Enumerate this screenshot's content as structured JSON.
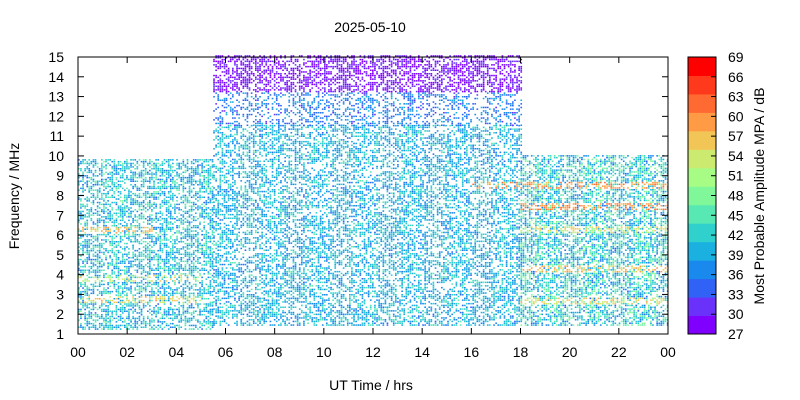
{
  "chart_data": {
    "type": "heatmap",
    "title": "2025-05-10",
    "xlabel": "UT Time / hrs",
    "ylabel": "Frequency / MHz",
    "colorbar_label": "Most Probable Amplitude MPA / dB",
    "xlim": [
      0,
      24
    ],
    "ylim": [
      1,
      15
    ],
    "x_tick_labels": [
      "00",
      "02",
      "04",
      "06",
      "08",
      "10",
      "12",
      "14",
      "16",
      "18",
      "20",
      "22",
      "00"
    ],
    "y_ticks": [
      1,
      2,
      3,
      4,
      5,
      6,
      7,
      8,
      9,
      10,
      11,
      12,
      13,
      14,
      15
    ],
    "colorbar_ticks": [
      27,
      30,
      33,
      36,
      39,
      42,
      45,
      48,
      51,
      54,
      57,
      60,
      63,
      66,
      69
    ],
    "colorbar_range": [
      27,
      69
    ],
    "colormap": [
      "#8000ff",
      "#6a31fb",
      "#3063f5",
      "#1a89ee",
      "#1ab0e0",
      "#30d0cc",
      "#58e8b4",
      "#80f89a",
      "#a6fc84",
      "#ccea70",
      "#f2c656",
      "#ff9a45",
      "#ff6a32",
      "#ff3a1c",
      "#ff0000"
    ],
    "grid": false,
    "regions": [
      {
        "t_start": 0,
        "t_end": 5.5,
        "f_low": 1.2,
        "f_high": 9.8,
        "amp_base": 41,
        "amp_spread": 6,
        "density": 0.55
      },
      {
        "t_start": 5.5,
        "t_end": 18,
        "f_low": 1.4,
        "f_high": 11.5,
        "amp_base": 40,
        "amp_spread": 5,
        "density": 0.5
      },
      {
        "t_start": 5.5,
        "t_end": 18,
        "f_low": 11.5,
        "f_high": 13.2,
        "amp_base": 36,
        "amp_spread": 4,
        "density": 0.35
      },
      {
        "t_start": 5.5,
        "t_end": 18,
        "f_low": 13.2,
        "f_high": 15.0,
        "amp_base": 29,
        "amp_spread": 3,
        "density": 0.55
      },
      {
        "t_start": 18,
        "t_end": 24,
        "f_low": 1.4,
        "f_high": 10.0,
        "amp_base": 42,
        "amp_spread": 7,
        "density": 0.6
      }
    ],
    "hot_bands": [
      {
        "t_start": 0,
        "t_end": 5,
        "f": 2.7,
        "amp": 58
      },
      {
        "t_start": 0,
        "t_end": 5,
        "f": 3.8,
        "amp": 56
      },
      {
        "t_start": 0,
        "t_end": 3,
        "f": 6.2,
        "amp": 60
      },
      {
        "t_start": 16,
        "t_end": 24,
        "f": 8.5,
        "amp": 62
      },
      {
        "t_start": 18,
        "t_end": 24,
        "f": 7.4,
        "amp": 63
      },
      {
        "t_start": 18,
        "t_end": 24,
        "f": 4.2,
        "amp": 60
      },
      {
        "t_start": 18,
        "t_end": 24,
        "f": 2.6,
        "amp": 58
      },
      {
        "t_start": 18,
        "t_end": 24,
        "f": 6.2,
        "amp": 57
      }
    ]
  }
}
